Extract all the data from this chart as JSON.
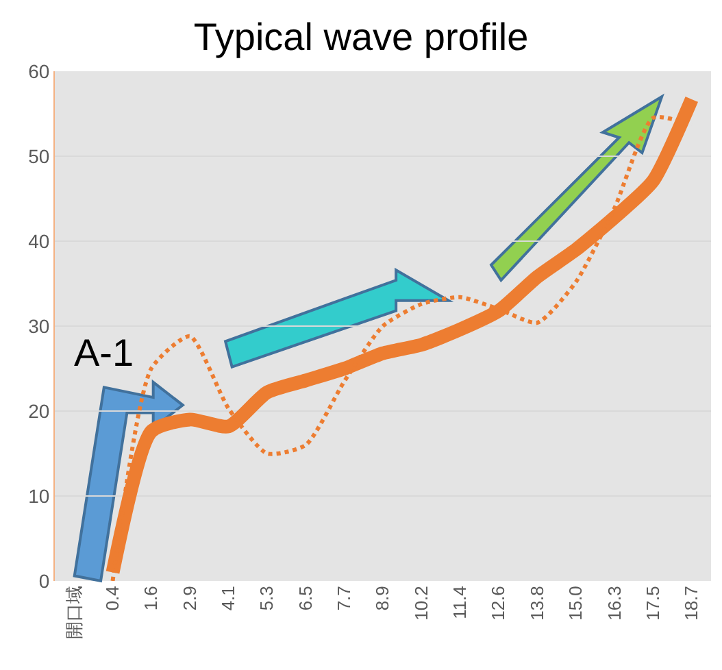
{
  "chart_data": {
    "type": "line",
    "title": "Typical wave profile",
    "categories": [
      "開口域",
      "0.4",
      "1.6",
      "2.9",
      "4.1",
      "5.3",
      "6.5",
      "7.7",
      "8.9",
      "10.2",
      "11.4",
      "12.6",
      "13.8",
      "15.0",
      "16.3",
      "17.5",
      "18.7"
    ],
    "series": [
      {
        "color": "#ed7d31",
        "line_style": "solid",
        "values": [
          null,
          1,
          17.6,
          19,
          18.2,
          22.2,
          23.6,
          25,
          26.8,
          27.8,
          29.6,
          31.8,
          35.8,
          39,
          42.8,
          47.1,
          56.7
        ]
      },
      {
        "color": "#ed7d31",
        "line_style": "dotted",
        "values": [
          null,
          0,
          25,
          28.8,
          20.3,
          15,
          16,
          23.5,
          30,
          32.6,
          33.4,
          32,
          30.4,
          35.2,
          43.9,
          54.5,
          53.7
        ]
      }
    ],
    "ylim": [
      0,
      60
    ],
    "yticks": [
      0,
      10,
      20,
      30,
      40,
      50,
      60
    ],
    "grid": "y",
    "marker": "none",
    "annotations": [
      "A-1"
    ]
  }
}
